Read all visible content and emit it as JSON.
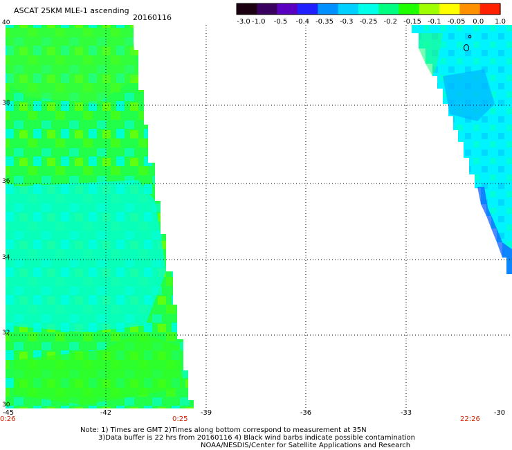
{
  "header": {
    "title": "ASCAT 25KM MLE-1 ascending",
    "date": "20160116"
  },
  "colorbar": {
    "labels": [
      "-3.0",
      "-1.0",
      "-0.5",
      "-0.4",
      "-0.35",
      "-0.3",
      "-0.25",
      "-0.2",
      "-0.15",
      "-0.1",
      "-0.05",
      "0.0",
      "1.0"
    ],
    "colors": [
      "#1a0010",
      "#3a0060",
      "#5a00c0",
      "#2020ff",
      "#0090ff",
      "#00d0ff",
      "#00ffe8",
      "#00ff80",
      "#20ff00",
      "#a0ff00",
      "#ffff00",
      "#ff9000",
      "#ff2000"
    ]
  },
  "map": {
    "lat_labels": [
      "40",
      "38",
      "36",
      "34",
      "32",
      "30"
    ],
    "lon_labels": [
      "-45",
      "-42",
      "-39",
      "-36",
      "-33",
      "-30"
    ],
    "time_left_start": "0:26",
    "time_left_end": "0:25",
    "time_right": "22:26"
  },
  "footer": {
    "note_line1": "Note: 1) Times are GMT 2)Times along bottom correspond to measurement at 35N",
    "note_line2": "3)Data buffer is 22 hrs from 20160116 4) Black wind barbs indicate possible contamination",
    "credit": "NOAA/NESDIS/Center for Satellite Applications and Research"
  }
}
